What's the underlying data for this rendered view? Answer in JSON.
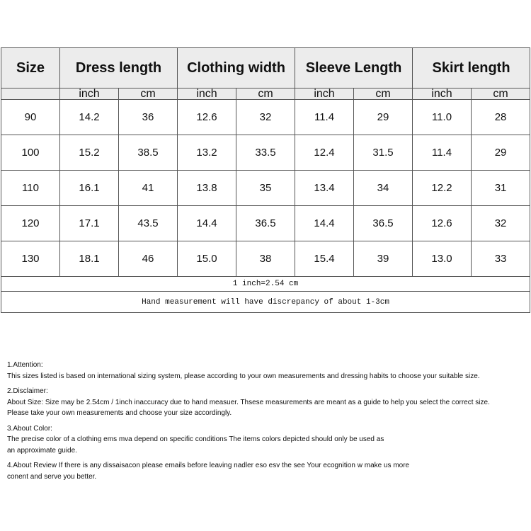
{
  "table": {
    "headers": [
      "Size",
      "Dress length",
      "Clothing width",
      "Sleeve Length",
      "Skirt length"
    ],
    "units": [
      "inch",
      "cm",
      "inch",
      "cm",
      "inch",
      "cm",
      "inch",
      "cm"
    ],
    "rows": [
      [
        "90",
        "14.2",
        "36",
        "12.6",
        "32",
        "11.4",
        "29",
        "11.0",
        "28"
      ],
      [
        "100",
        "15.2",
        "38.5",
        "13.2",
        "33.5",
        "12.4",
        "31.5",
        "11.4",
        "29"
      ],
      [
        "110",
        "16.1",
        "41",
        "13.8",
        "35",
        "13.4",
        "34",
        "12.2",
        "31"
      ],
      [
        "120",
        "17.1",
        "43.5",
        "14.4",
        "36.5",
        "14.4",
        "36.5",
        "12.6",
        "32"
      ],
      [
        "130",
        "18.1",
        "46",
        "15.0",
        "38",
        "15.4",
        "39",
        "13.0",
        "33"
      ]
    ],
    "conversion_note": "1 inch=2.54 cm",
    "discrepancy_note": "Hand measurement will have discrepancy of about 1-3cm"
  },
  "notes": [
    {
      "title": "1.Attention:",
      "lines": [
        "This sizes listed is based on international sizing system, please according to your own measurements and dressing habits to choose your suitable size."
      ]
    },
    {
      "title": "2.Disclaimer:",
      "lines": [
        "About Size: Size may be 2.54cm / 1inch inaccuracy due to hand measuer. Thsese measurements are meant as a guide to help you select the correct size.",
        "Please take your own measurements and choose your size accordingly."
      ]
    },
    {
      "title": "3.About Color:",
      "lines": [
        "The precise color of a clothing ems mva depend on specific conditions The items colors depicted should only be used as",
        "an approximate guide."
      ]
    },
    {
      "title": "",
      "lines": [
        "4.About Review If there is any dissaisacon please emails before leaving nadler eso esv the see Your ecognition w make us more",
        "conent and serve you better."
      ]
    }
  ]
}
